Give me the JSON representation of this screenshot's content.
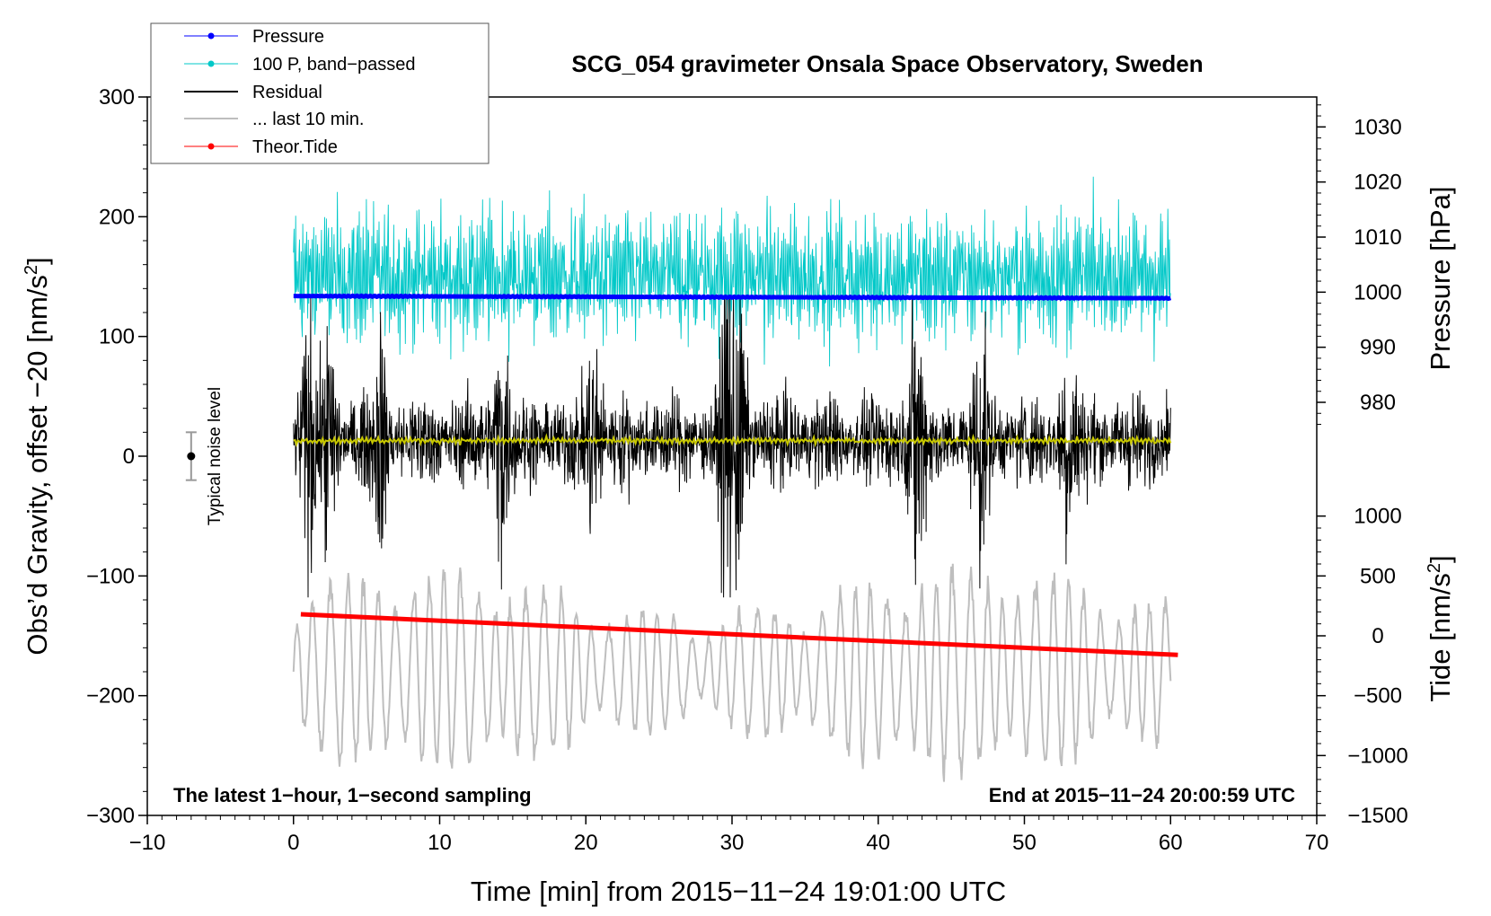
{
  "chart_data": {
    "type": "line",
    "title": "SCG_054 gravimeter Onsala Space Observatory, Sweden",
    "xlabel": "Time [min] from 2015−11−24 19:01:00 UTC",
    "ylabel_main": "Obs’d Gravity, offset −20 [nm/s",
    "ylabel_main_sup": "2",
    "ylabel_main_tail": "]",
    "ylabel_pressure": "Pressure [hPa]",
    "ylabel_tide": "Tide [nm/s",
    "ylabel_tide_sup": "2",
    "ylabel_tide_tail": "]",
    "xlim": [
      -10,
      70
    ],
    "ylim": [
      -300,
      300
    ],
    "x_ticks": [
      -10,
      0,
      10,
      20,
      30,
      40,
      50,
      60,
      70
    ],
    "x_tick_labels": [
      "−10",
      "0",
      "10",
      "20",
      "30",
      "40",
      "50",
      "60",
      "70"
    ],
    "y_ticks": [
      -300,
      -200,
      -100,
      0,
      100,
      200,
      300
    ],
    "y_tick_labels": [
      "−300",
      "−200",
      "−100",
      "0",
      "100",
      "200",
      "300"
    ],
    "pressure_axis": {
      "ticks": [
        980,
        990,
        1000,
        1010,
        1020,
        1030
      ],
      "tick_labels": [
        "980",
        "990",
        "1000",
        "1010",
        "1020",
        "1030"
      ],
      "map": {
        "value": [
          980,
          1030
        ],
        "main": [
          45,
          275
        ]
      }
    },
    "tide_axis": {
      "ticks": [
        -1500,
        -1000,
        -500,
        0,
        500,
        1000
      ],
      "tick_labels": [
        "−1500",
        "−1000",
        "−500",
        "0",
        "500",
        "1000"
      ],
      "map": {
        "value": [
          -1500,
          1000
        ],
        "main": [
          -300,
          -50
        ]
      }
    },
    "series": [
      {
        "name": "Pressure",
        "color": "#0000ff",
        "unit": "hPa",
        "x_range": [
          0,
          60
        ],
        "start": 999.3,
        "end": 998.9
      },
      {
        "name": "100 P, band−passed",
        "color": "#00c8c8",
        "x_range": [
          0,
          60
        ],
        "center": 150,
        "amplitude": 50
      },
      {
        "name": "Residual",
        "color": "#000000",
        "x_range": [
          0,
          60
        ],
        "center": 13,
        "amplitude": 35,
        "min": -118,
        "max": 132
      },
      {
        "name": "... last 10 min.",
        "color": "#bebebe",
        "x_range": [
          0,
          60
        ],
        "center": -180,
        "amplitude": 70
      },
      {
        "name": "Theor.Tide",
        "color": "#ff0000",
        "x_range": [
          0.5,
          60.5
        ],
        "start": -132,
        "end": -166
      },
      {
        "name": "mean",
        "color": "#c8c800",
        "x_range": [
          0,
          60
        ],
        "value": 13,
        "in_legend": false
      }
    ],
    "noise_level": {
      "label": "Typical noise level",
      "x": -7,
      "y": 0,
      "error": 20
    },
    "legend_position": "top-left"
  },
  "annotations": {
    "bottom_left": "The latest 1−hour, 1−second sampling",
    "bottom_right": "End at 2015−11−24 20:00:59 UTC"
  }
}
